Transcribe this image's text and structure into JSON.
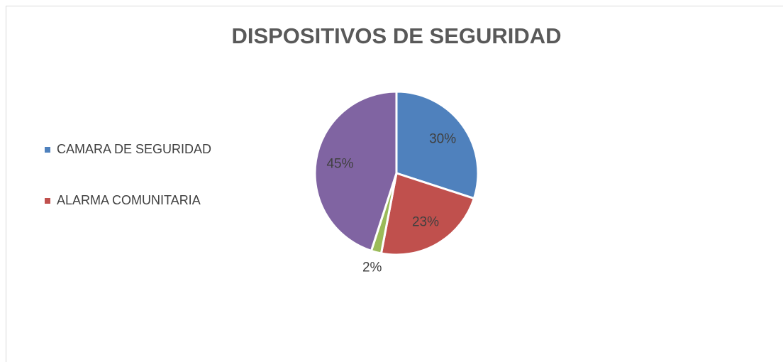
{
  "chart_data": {
    "type": "pie",
    "title": "DISPOSITIVOS DE SEGURIDAD",
    "categories": [
      "CAMARA DE SEGURIDAD",
      "ALARMA COMUNITARIA",
      null,
      null
    ],
    "values": [
      30,
      23,
      2,
      45
    ],
    "value_labels": [
      "30%",
      "23%",
      "2%",
      "45%"
    ],
    "colors": [
      "#4f81bd",
      "#c0504d",
      "#9bbb59",
      "#8064a2"
    ],
    "legend": "left"
  }
}
